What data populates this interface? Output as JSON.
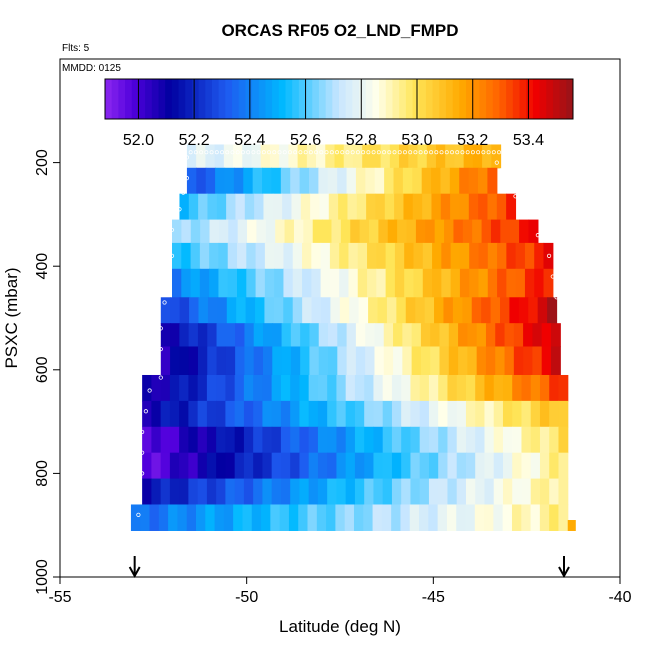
{
  "chart_data": {
    "type": "heatmap",
    "title": "ORCAS RF05 O2_LND_FMPD",
    "subtitle_flts": "Flts: 5",
    "subtitle_mmdd": "MMDD: 0125",
    "xlabel": "Latitude (deg N)",
    "ylabel": "PSXC (mbar)",
    "xlim": [
      -55,
      -40
    ],
    "ylim": [
      1000,
      0
    ],
    "x_ticks": [
      -55,
      -50,
      -45,
      -40
    ],
    "y_ticks": [
      200,
      400,
      600,
      800,
      1000
    ],
    "colorbar": {
      "range": [
        51.88,
        53.56
      ],
      "ticks": [
        52.0,
        52.2,
        52.4,
        52.6,
        52.8,
        53.0,
        53.2,
        53.4
      ],
      "tick_labels": [
        "52.0",
        "52.2",
        "52.4",
        "52.6",
        "52.8",
        "53.0",
        "53.2",
        "53.4"
      ]
    },
    "bin_width_lat": 0.25,
    "pressure_bands": [
      {
        "p_top": 165,
        "p_bot": 210,
        "lat_min": -51.6,
        "lat_max": -43.2,
        "v_west": 52.75,
        "v_east": 53.15
      },
      {
        "p_top": 210,
        "p_bot": 260,
        "lat_min": -51.6,
        "lat_max": -43.3,
        "v_west": 52.3,
        "v_east": 53.3
      },
      {
        "p_top": 260,
        "p_bot": 310,
        "lat_min": -51.8,
        "lat_max": -42.8,
        "v_west": 52.55,
        "v_east": 53.35
      },
      {
        "p_top": 310,
        "p_bot": 355,
        "lat_min": -52.0,
        "lat_max": -42.2,
        "v_west": 52.65,
        "v_east": 53.4
      },
      {
        "p_top": 355,
        "p_bot": 405,
        "lat_min": -52.0,
        "lat_max": -41.8,
        "v_west": 52.55,
        "v_east": 53.4
      },
      {
        "p_top": 405,
        "p_bot": 460,
        "lat_min": -52.0,
        "lat_max": -41.8,
        "v_west": 52.4,
        "v_east": 53.4
      },
      {
        "p_top": 460,
        "p_bot": 510,
        "lat_min": -52.3,
        "lat_max": -41.7,
        "v_west": 52.25,
        "v_east": 53.5
      },
      {
        "p_top": 510,
        "p_bot": 555,
        "lat_min": -52.3,
        "lat_max": -41.6,
        "v_west": 52.1,
        "v_east": 53.5
      },
      {
        "p_top": 555,
        "p_bot": 610,
        "lat_min": -52.3,
        "lat_max": -41.6,
        "v_west": 52.05,
        "v_east": 53.45
      },
      {
        "p_top": 610,
        "p_bot": 660,
        "lat_min": -52.8,
        "lat_max": -41.4,
        "v_west": 52.05,
        "v_east": 53.35
      },
      {
        "p_top": 660,
        "p_bot": 710,
        "lat_min": -52.8,
        "lat_max": -41.4,
        "v_west": 52.1,
        "v_east": 53.1
      },
      {
        "p_top": 710,
        "p_bot": 760,
        "lat_min": -52.8,
        "lat_max": -41.4,
        "v_west": 51.95,
        "v_east": 53.0
      },
      {
        "p_top": 760,
        "p_bot": 810,
        "lat_min": -52.8,
        "lat_max": -41.4,
        "v_west": 51.95,
        "v_east": 52.95
      },
      {
        "p_top": 810,
        "p_bot": 860,
        "lat_min": -52.8,
        "lat_max": -41.4,
        "v_west": 52.15,
        "v_east": 52.95
      },
      {
        "p_top": 860,
        "p_bot": 910,
        "lat_min": -53.1,
        "lat_max": -41.4,
        "v_west": 52.35,
        "v_east": 52.95
      },
      {
        "p_top": 890,
        "p_bot": 910,
        "lat_min": -41.4,
        "lat_max": -41.2,
        "v_west": 53.15,
        "v_east": 53.15
      }
    ],
    "flight_track": {
      "marker": "open-circle",
      "points": [
        [
          -51.6,
          190
        ],
        [
          -51.6,
          230
        ],
        [
          -51.7,
          258
        ],
        [
          -51.8,
          290
        ],
        [
          -52.0,
          330
        ],
        [
          -52.0,
          380
        ],
        [
          -52.1,
          430
        ],
        [
          -52.2,
          470
        ],
        [
          -52.3,
          520
        ],
        [
          -52.3,
          560
        ],
        [
          -52.3,
          615
        ],
        [
          -52.6,
          640
        ],
        [
          -52.7,
          680
        ],
        [
          -52.8,
          720
        ],
        [
          -52.8,
          760
        ],
        [
          -52.8,
          800
        ],
        [
          -52.9,
          840
        ],
        [
          -52.9,
          880
        ],
        [
          -43.3,
          200
        ],
        [
          -43.2,
          215
        ],
        [
          -43.0,
          240
        ],
        [
          -42.8,
          265
        ],
        [
          -42.6,
          285
        ],
        [
          -42.4,
          300
        ],
        [
          -42.2,
          340
        ],
        [
          -41.9,
          380
        ],
        [
          -41.8,
          420
        ],
        [
          -41.7,
          460
        ],
        [
          -41.6,
          500
        ],
        [
          -41.5,
          540
        ]
      ],
      "track_level_hpa": 180,
      "track_lat_range": [
        -51.5,
        -43.2
      ]
    },
    "arrows": [
      {
        "lat": -53.0,
        "direction": "down"
      },
      {
        "lat": -41.5,
        "direction": "down"
      }
    ],
    "grid": false
  }
}
